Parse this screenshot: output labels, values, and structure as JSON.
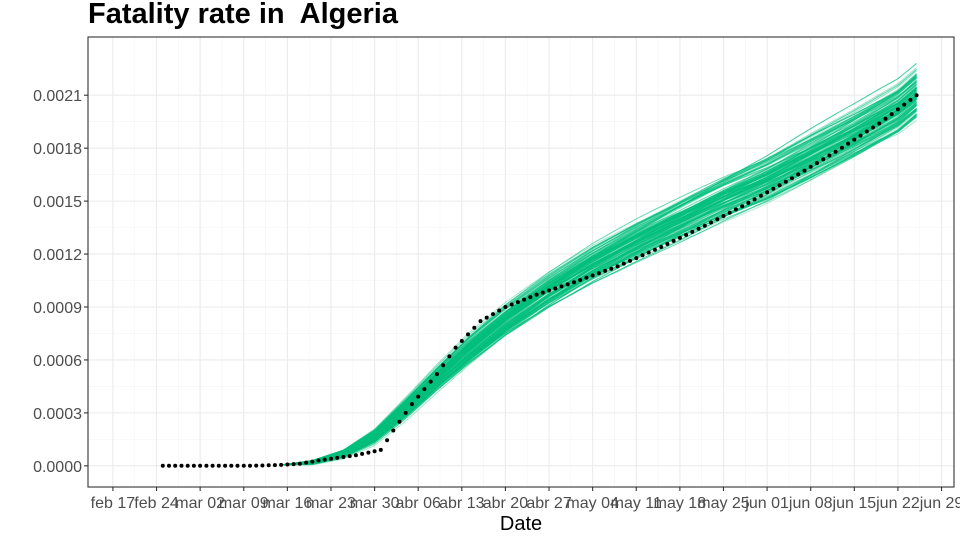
{
  "chart_data": {
    "type": "line",
    "title": "Fatality rate in  Algeria",
    "xlabel": "Date",
    "ylabel": "",
    "x_axis": {
      "start": "2020-02-17",
      "tick_labels": [
        "feb 17",
        "feb 24",
        "mar 02",
        "mar 09",
        "mar 16",
        "mar 23",
        "mar 30",
        "abr 06",
        "abr 13",
        "abr 20",
        "abr 27",
        "may 04",
        "may 11",
        "may 18",
        "may 25",
        "jun 01",
        "jun 08",
        "jun 15",
        "jun 22",
        "jun 29"
      ],
      "range": [
        "2020-02-13",
        "2020-07-01"
      ]
    },
    "y_axis": {
      "ticks": [
        0.0,
        0.0003,
        0.0006,
        0.0009,
        0.0012,
        0.0015,
        0.0018,
        0.0021
      ],
      "tick_labels": [
        "0.0000",
        "0.0003",
        "0.0006",
        "0.0009",
        "0.0012",
        "0.0015",
        "0.0018",
        "0.0021"
      ],
      "range": [
        -0.00012,
        0.00243
      ]
    },
    "grid": true,
    "observed": {
      "style": "points",
      "color": "#000000",
      "points": [
        [
          "2020-02-25",
          0.0
        ],
        [
          "2020-03-01",
          0.0
        ],
        [
          "2020-03-05",
          0.0
        ],
        [
          "2020-03-10",
          0.0
        ],
        [
          "2020-03-15",
          5e-06
        ],
        [
          "2020-03-18",
          1.2e-05
        ],
        [
          "2020-03-21",
          3e-05
        ],
        [
          "2020-03-24",
          4.5e-05
        ],
        [
          "2020-03-27",
          6e-05
        ],
        [
          "2020-03-29",
          7.5e-05
        ],
        [
          "2020-03-31",
          9e-05
        ],
        [
          "2020-04-02",
          0.0002
        ],
        [
          "2020-04-05",
          0.00035
        ],
        [
          "2020-04-09",
          0.00052
        ],
        [
          "2020-04-12",
          0.00067
        ],
        [
          "2020-04-16",
          0.00082
        ],
        [
          "2020-04-20",
          0.0009
        ],
        [
          "2020-04-25",
          0.00097
        ],
        [
          "2020-05-01",
          0.00104
        ],
        [
          "2020-05-08",
          0.00113
        ],
        [
          "2020-05-15",
          0.00124
        ],
        [
          "2020-05-22",
          0.00136
        ],
        [
          "2020-05-29",
          0.00149
        ],
        [
          "2020-06-05",
          0.00163
        ],
        [
          "2020-06-12",
          0.00178
        ],
        [
          "2020-06-19",
          0.00194
        ],
        [
          "2020-06-25",
          0.0021
        ]
      ]
    },
    "simulations": {
      "style": "lines",
      "color": "#00BF7D",
      "count": 120,
      "median": [
        [
          "2020-03-15",
          5e-06
        ],
        [
          "2020-03-20",
          2e-05
        ],
        [
          "2020-03-25",
          7e-05
        ],
        [
          "2020-03-30",
          0.00017
        ],
        [
          "2020-04-04",
          0.00033
        ],
        [
          "2020-04-09",
          0.0005
        ],
        [
          "2020-04-14",
          0.00066
        ],
        [
          "2020-04-20",
          0.00083
        ],
        [
          "2020-04-27",
          0.001
        ],
        [
          "2020-05-04",
          0.00115
        ],
        [
          "2020-05-11",
          0.00128
        ],
        [
          "2020-05-18",
          0.0014
        ],
        [
          "2020-05-25",
          0.00152
        ],
        [
          "2020-06-01",
          0.00163
        ],
        [
          "2020-06-08",
          0.00176
        ],
        [
          "2020-06-15",
          0.00189
        ],
        [
          "2020-06-22",
          0.00203
        ],
        [
          "2020-06-25",
          0.00212
        ]
      ],
      "spread": [
        [
          "2020-03-15",
          0.0
        ],
        [
          "2020-03-25",
          2e-05
        ],
        [
          "2020-04-04",
          5e-05
        ],
        [
          "2020-04-14",
          7e-05
        ],
        [
          "2020-04-27",
          8e-05
        ],
        [
          "2020-05-18",
          0.0001
        ],
        [
          "2020-06-08",
          0.00012
        ],
        [
          "2020-06-25",
          0.00013
        ]
      ]
    }
  }
}
